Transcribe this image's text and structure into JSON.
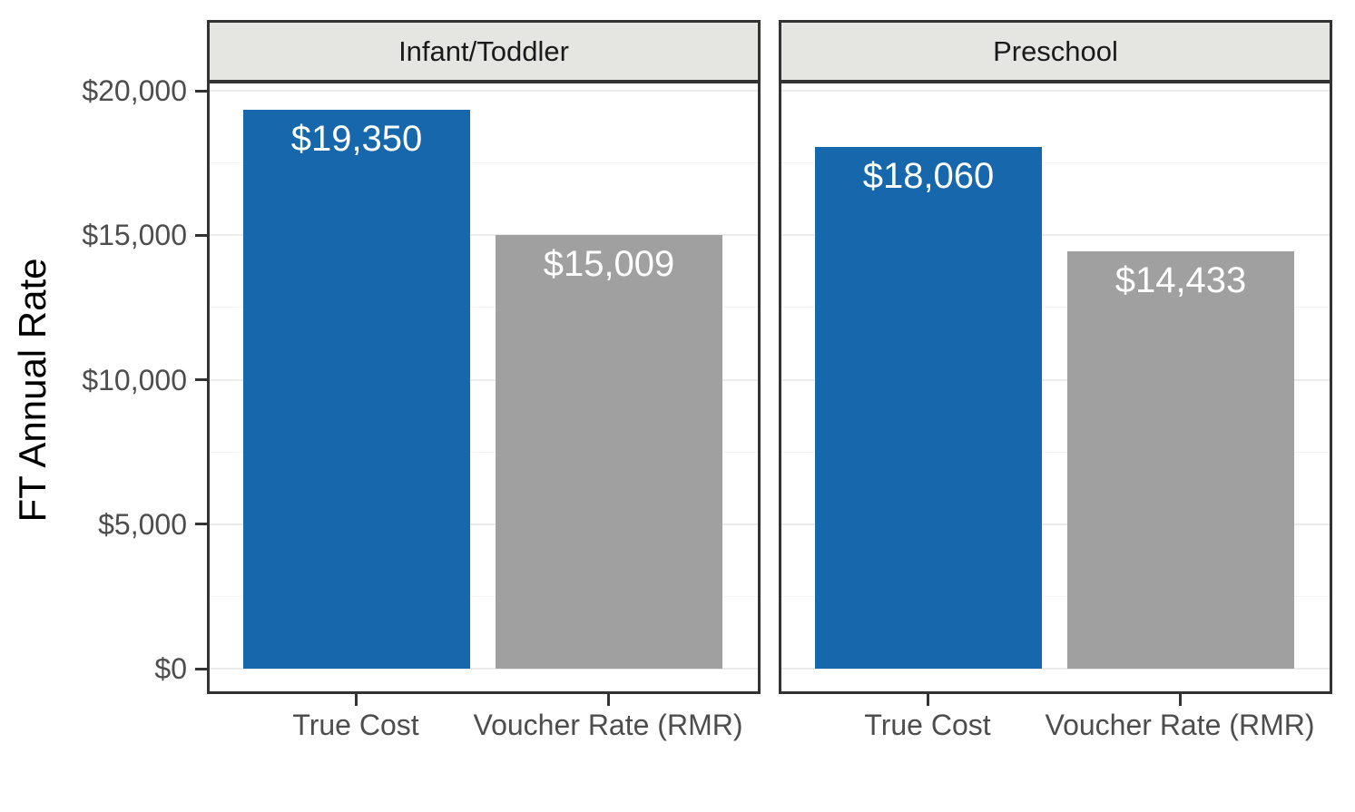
{
  "colors": {
    "bar_blue": "#1667AC",
    "bar_gray": "#A0A0A0",
    "strip_background": "#E5E5E2",
    "panel_border": "#333333",
    "axis_text": "#4D4D4D",
    "axis_title_text": "#000000",
    "grid_major": "#EBEBEB",
    "grid_minor": "#F4F4F4",
    "bar_label_text": "#FFFFFF"
  },
  "chart_data": {
    "type": "bar",
    "title": "",
    "xlabel": "",
    "ylabel": "FT Annual Rate",
    "categories": [
      "True Cost",
      "Voucher Rate (RMR)"
    ],
    "facets": [
      {
        "label": "Infant/Toddler",
        "values": [
          19350,
          15009
        ],
        "value_labels": [
          "$19,350",
          "$15,009"
        ]
      },
      {
        "label": "Preschool",
        "values": [
          18060,
          14433
        ],
        "value_labels": [
          "$18,060",
          "$14,433"
        ]
      }
    ],
    "bar_colors": [
      "#1667AC",
      "#A0A0A0"
    ],
    "ylim": [
      0,
      20000
    ],
    "y_ticks": [
      {
        "value": 20000,
        "label": "$20,000"
      },
      {
        "value": 15000,
        "label": "$15,000"
      },
      {
        "value": 10000,
        "label": "$10,000"
      },
      {
        "value": 5000,
        "label": "$5,000"
      },
      {
        "value": 0,
        "label": "$0"
      }
    ],
    "y_minor_ticks": [
      17500,
      12500,
      7500,
      2500
    ],
    "grid": "horizontal major+minor",
    "legend": "none"
  }
}
